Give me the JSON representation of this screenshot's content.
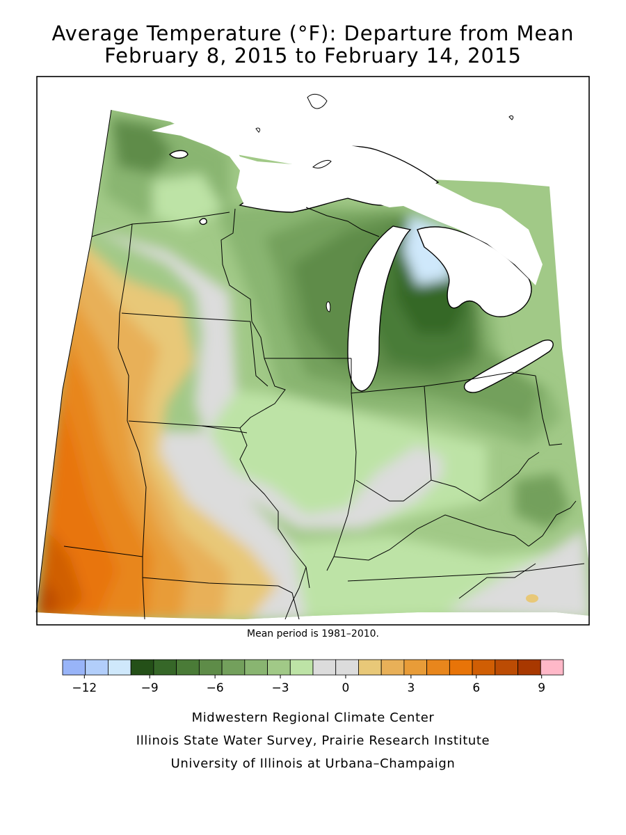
{
  "title": {
    "line1": "Average Temperature (°F): Departure from Mean",
    "line2": "February 8, 2015 to February 14, 2015"
  },
  "mean_period_note": "Mean period is 1981–2010.",
  "legend": {
    "colors": [
      "#98b4f8",
      "#b2cefa",
      "#cfe8fb",
      "#245018",
      "#366728",
      "#4a7b37",
      "#5e8c48",
      "#73a05c",
      "#89b571",
      "#a1c987",
      "#bde3a6",
      "#dcdcdc",
      "#dcdcdc",
      "#e8c878",
      "#e8b058",
      "#e89c38",
      "#e8861c",
      "#e87408",
      "#d05e04",
      "#bc4c04",
      "#a83800",
      "#ffb8c8"
    ],
    "ticks": [
      {
        "value": -12,
        "label": "−12"
      },
      {
        "value": -9,
        "label": "−9"
      },
      {
        "value": -6,
        "label": "−6"
      },
      {
        "value": -3,
        "label": "−3"
      },
      {
        "value": 0,
        "label": "0"
      },
      {
        "value": 3,
        "label": "3"
      },
      {
        "value": 6,
        "label": "6"
      },
      {
        "value": 9,
        "label": "9"
      }
    ],
    "min": -13,
    "max": 10
  },
  "credits": [
    "Midwestern Regional Climate Center",
    "Illinois State Water Survey, Prairie Research Institute",
    "University of Illinois at Urbana–Champaign"
  ]
}
